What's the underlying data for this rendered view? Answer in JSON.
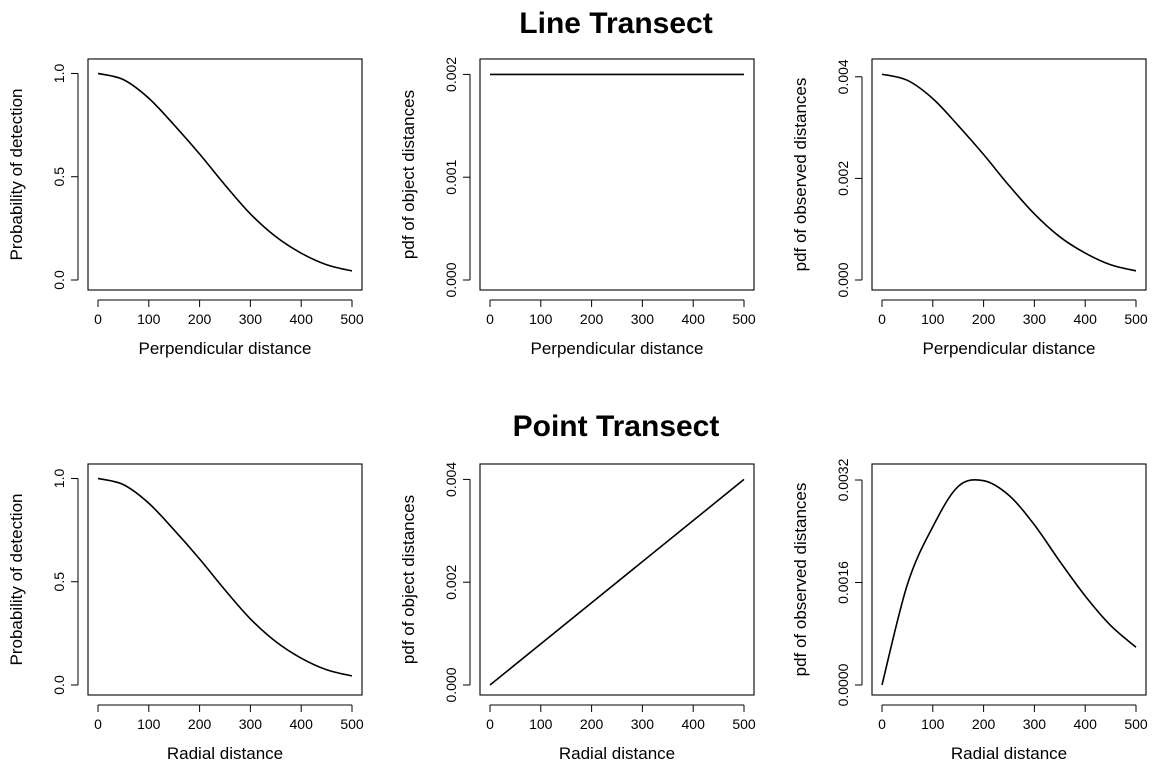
{
  "rows": [
    {
      "title": "Line Transect"
    },
    {
      "title": "Point Transect"
    }
  ],
  "chart_data": [
    {
      "type": "line",
      "xlabel": "Perpendicular distance",
      "ylabel": "Probability of detection",
      "xlim": [
        0,
        500
      ],
      "ylim": [
        0,
        1.07
      ],
      "xticks": [
        "0",
        "100",
        "200",
        "300",
        "400",
        "500"
      ],
      "yticks": [
        "0.0",
        "0.5",
        "1.0"
      ],
      "x": [
        0,
        50,
        100,
        150,
        200,
        250,
        300,
        350,
        400,
        450,
        500
      ],
      "y": [
        1.0,
        0.97,
        0.88,
        0.75,
        0.61,
        0.46,
        0.32,
        0.21,
        0.13,
        0.074,
        0.044
      ]
    },
    {
      "type": "line",
      "xlabel": "Perpendicular distance",
      "ylabel": "pdf of object distances",
      "xlim": [
        0,
        500
      ],
      "ylim": [
        0,
        0.00215
      ],
      "xticks": [
        "0",
        "100",
        "200",
        "300",
        "400",
        "500"
      ],
      "yticks": [
        "0.000",
        "0.001",
        "0.002"
      ],
      "x": [
        0,
        500
      ],
      "y": [
        0.002,
        0.002
      ]
    },
    {
      "type": "line",
      "xlabel": "Perpendicular distance",
      "ylabel": "pdf of observed distances",
      "xlim": [
        0,
        500
      ],
      "ylim": [
        0,
        0.00435
      ],
      "xticks": [
        "0",
        "100",
        "200",
        "300",
        "400",
        "500"
      ],
      "yticks": [
        "0.000",
        "0.002",
        "0.004"
      ],
      "x": [
        0,
        50,
        100,
        150,
        200,
        250,
        300,
        350,
        400,
        450,
        500
      ],
      "y": [
        0.00405,
        0.00393,
        0.00357,
        0.00304,
        0.00247,
        0.00186,
        0.0013,
        0.00085,
        0.00053,
        0.0003,
        0.00018
      ]
    },
    {
      "type": "line",
      "xlabel": "Radial distance",
      "ylabel": "Probability of detection",
      "xlim": [
        0,
        500
      ],
      "ylim": [
        0,
        1.07
      ],
      "xticks": [
        "0",
        "100",
        "200",
        "300",
        "400",
        "500"
      ],
      "yticks": [
        "0.0",
        "0.5",
        "1.0"
      ],
      "x": [
        0,
        50,
        100,
        150,
        200,
        250,
        300,
        350,
        400,
        450,
        500
      ],
      "y": [
        1.0,
        0.97,
        0.88,
        0.75,
        0.61,
        0.46,
        0.32,
        0.21,
        0.13,
        0.074,
        0.044
      ]
    },
    {
      "type": "line",
      "xlabel": "Radial distance",
      "ylabel": "pdf of object distances",
      "xlim": [
        0,
        500
      ],
      "ylim": [
        0,
        0.0043
      ],
      "xticks": [
        "0",
        "100",
        "200",
        "300",
        "400",
        "500"
      ],
      "yticks": [
        "0.000",
        "0.002",
        "0.004"
      ],
      "x": [
        0,
        500
      ],
      "y": [
        0,
        0.004
      ]
    },
    {
      "type": "line",
      "xlabel": "Radial distance",
      "ylabel": "pdf of observed distances",
      "xlim": [
        0,
        500
      ],
      "ylim": [
        0,
        0.00345
      ],
      "xticks": [
        "0",
        "100",
        "200",
        "300",
        "400",
        "500"
      ],
      "yticks": [
        "0.0000",
        "0.0016",
        "0.0032"
      ],
      "x": [
        0,
        50,
        100,
        150,
        200,
        250,
        300,
        350,
        400,
        450,
        500
      ],
      "y": [
        0,
        0.00157,
        0.00247,
        0.0031,
        0.00319,
        0.00296,
        0.0025,
        0.00193,
        0.00139,
        0.00093,
        0.00059
      ]
    }
  ]
}
